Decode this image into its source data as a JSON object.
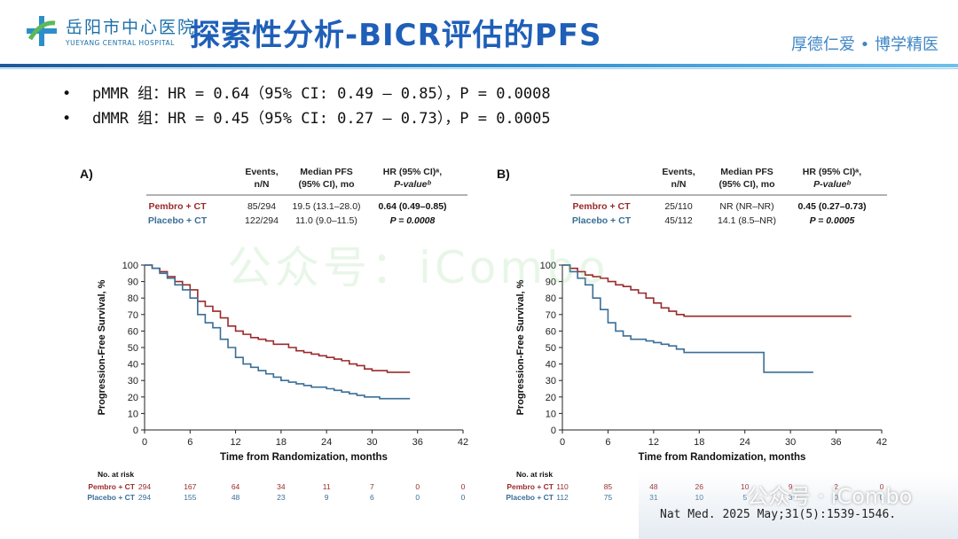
{
  "header": {
    "logo_cn": "岳阳市中心医院",
    "logo_en": "YUEYANG CENTRAL HOSPITAL",
    "title": "探索性分析-BICR评估的PFS",
    "motto": "厚德仁爱 • 博学精医"
  },
  "bullets": [
    "pMMR 组：HR = 0.64（95% CI: 0.49 – 0.85），P = 0.0008",
    "dMMR 组：HR = 0.45（95% CI: 0.27 – 0.73），P = 0.0005"
  ],
  "watermark": "公众号：iCombo",
  "watermark_small": "公众号 · iCombo",
  "citation": "Nat Med. 2025 May;31(5):1539-1546.",
  "colors": {
    "pembro": "#9b2a2a",
    "placebo": "#3a6e96",
    "title": "#1f5fb8"
  },
  "chart_data": [
    {
      "type": "line",
      "panel": "A)",
      "table_headers": {
        "events": "Events,\nn/N",
        "median": "Median PFS\n(95% CI), mo",
        "hr": "HR (95% CI)ᵃ,\nP-valueᵇ"
      },
      "series": [
        {
          "name": "Pembro + CT",
          "events": "85/294",
          "median": "19.5 (13.1–28.0)",
          "hr": "0.64 (0.49–0.85)",
          "x": [
            0,
            1,
            2,
            3,
            4,
            5,
            6,
            7,
            8,
            9,
            10,
            11,
            12,
            13,
            14,
            15,
            16,
            17,
            18,
            19,
            20,
            21,
            22,
            23,
            24,
            25,
            26,
            27,
            28,
            29,
            30,
            31,
            32,
            33,
            34,
            35
          ],
          "y": [
            100,
            98,
            96,
            93,
            90,
            88,
            85,
            78,
            75,
            72,
            68,
            63,
            60,
            58,
            56,
            55,
            54,
            52,
            52,
            50,
            48,
            47,
            46,
            45,
            44,
            43,
            42,
            40,
            39,
            37,
            36,
            36,
            35,
            35,
            35,
            35
          ]
        },
        {
          "name": "Placebo + CT",
          "events": "122/294",
          "median": "11.0 (9.0–11.5)",
          "hr": "P = 0.0008",
          "x": [
            0,
            1,
            2,
            3,
            4,
            5,
            6,
            7,
            8,
            9,
            10,
            11,
            12,
            13,
            14,
            15,
            16,
            17,
            18,
            19,
            20,
            21,
            22,
            23,
            24,
            25,
            26,
            27,
            28,
            29,
            30,
            31,
            32,
            33,
            34,
            35
          ],
          "y": [
            100,
            98,
            95,
            92,
            88,
            85,
            80,
            70,
            65,
            62,
            55,
            50,
            44,
            40,
            38,
            36,
            34,
            32,
            30,
            29,
            28,
            27,
            26,
            26,
            25,
            24,
            23,
            22,
            21,
            20,
            20,
            19,
            19,
            19,
            19,
            19
          ]
        }
      ],
      "xlabel": "Time from Randomization, months",
      "ylabel": "Progression-Free Survival, %",
      "xlim": [
        0,
        42
      ],
      "ylim": [
        0,
        100
      ],
      "xticks": [
        0,
        6,
        12,
        18,
        24,
        30,
        36,
        42
      ],
      "yticks": [
        0,
        10,
        20,
        30,
        40,
        50,
        60,
        70,
        80,
        90,
        100
      ],
      "risk_title": "No. at risk",
      "risk": [
        {
          "label": "Pembro + CT",
          "values": [
            294,
            167,
            64,
            34,
            11,
            7,
            0,
            0
          ]
        },
        {
          "label": "Placebo + CT",
          "values": [
            294,
            155,
            48,
            23,
            9,
            6,
            0,
            0
          ]
        }
      ]
    },
    {
      "type": "line",
      "panel": "B)",
      "table_headers": {
        "events": "Events,\nn/N",
        "median": "Median PFS\n(95% CI), mo",
        "hr": "HR (95% CI)ᵃ,\nP-valueᵇ"
      },
      "series": [
        {
          "name": "Pembro + CT",
          "events": "25/110",
          "median": "NR (NR–NR)",
          "hr": "0.45 (0.27–0.73)",
          "x": [
            0,
            1,
            2,
            3,
            4,
            5,
            6,
            7,
            8,
            9,
            10,
            11,
            12,
            13,
            14,
            15,
            16,
            18,
            20,
            22,
            24,
            26,
            28,
            30,
            32,
            34,
            36,
            38
          ],
          "y": [
            100,
            98,
            96,
            94,
            93,
            92,
            90,
            88,
            87,
            85,
            83,
            80,
            77,
            74,
            72,
            70,
            69,
            69,
            69,
            69,
            69,
            69,
            69,
            69,
            69,
            69,
            69,
            69
          ]
        },
        {
          "name": "Placebo + CT",
          "events": "45/112",
          "median": "14.1 (8.5–NR)",
          "hr": "P = 0.0005",
          "x": [
            0,
            1,
            2,
            3,
            4,
            5,
            6,
            7,
            8,
            9,
            10,
            11,
            12,
            13,
            14,
            15,
            16,
            18,
            20,
            22,
            24,
            26,
            26.5,
            28,
            30,
            32,
            33
          ],
          "y": [
            100,
            96,
            92,
            88,
            80,
            73,
            65,
            60,
            57,
            55,
            55,
            54,
            53,
            52,
            51,
            49,
            47,
            47,
            47,
            47,
            47,
            47,
            35,
            35,
            35,
            35,
            35
          ]
        }
      ],
      "xlabel": "Time from Randomization, months",
      "ylabel": "Progression-Free Survival, %",
      "xlim": [
        0,
        42
      ],
      "ylim": [
        0,
        100
      ],
      "xticks": [
        0,
        6,
        12,
        18,
        24,
        30,
        36,
        42
      ],
      "yticks": [
        0,
        10,
        20,
        30,
        40,
        50,
        60,
        70,
        80,
        90,
        100
      ],
      "risk_title": "No. at risk",
      "risk": [
        {
          "label": "Pembro + CT",
          "values": [
            110,
            85,
            48,
            26,
            10,
            9,
            2,
            0
          ]
        },
        {
          "label": "Placebo + CT",
          "values": [
            112,
            75,
            31,
            10,
            5,
            3,
            0,
            0
          ]
        }
      ]
    }
  ]
}
